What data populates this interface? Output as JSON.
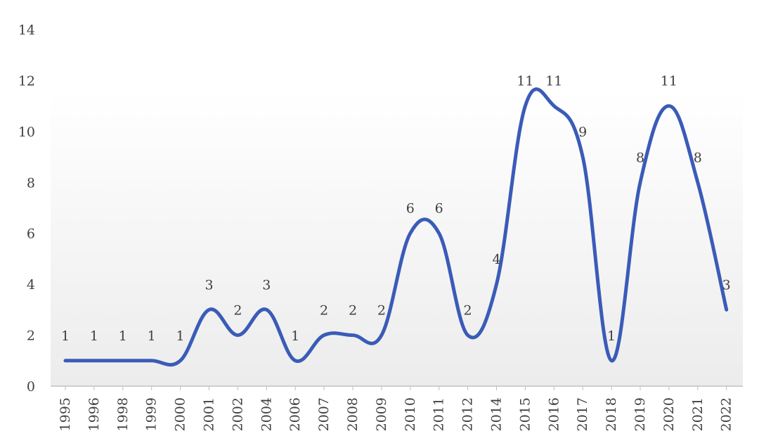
{
  "chart_data": {
    "type": "line",
    "smooth": true,
    "categories": [
      "1995",
      "1996",
      "1998",
      "1999",
      "2000",
      "2001",
      "2002",
      "2004",
      "2006",
      "2007",
      "2008",
      "2009",
      "2010",
      "2011",
      "2012",
      "2014",
      "2015",
      "2016",
      "2017",
      "2018",
      "2019",
      "2020",
      "2021",
      "2022"
    ],
    "values": [
      1,
      1,
      1,
      1,
      1,
      3,
      2,
      3,
      1,
      2,
      2,
      2,
      6,
      6,
      2,
      4,
      11,
      11,
      9,
      1,
      8,
      11,
      8,
      3
    ],
    "data_labels": true,
    "ylim": [
      0,
      14
    ],
    "yticks": [
      0,
      2,
      4,
      6,
      8,
      10,
      12,
      14
    ],
    "grid": false,
    "legend": "none",
    "line_color": "#3a5bb8",
    "label_color": "#404040",
    "axis_color": "#bfbfbf",
    "title": "",
    "xlabel": "",
    "ylabel": ""
  }
}
